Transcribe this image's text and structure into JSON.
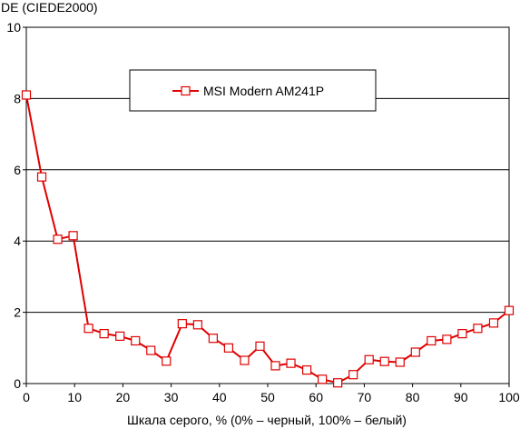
{
  "chart_data": {
    "type": "line",
    "title": "",
    "ylabel": "DE (CIEDE2000)",
    "xlabel": "Шкала серого, % (0% – черный, 100% – белый)",
    "xlim": [
      0,
      100
    ],
    "ylim": [
      0,
      10
    ],
    "xticks": [
      "0",
      "10",
      "20",
      "30",
      "40",
      "50",
      "60",
      "70",
      "80",
      "90",
      "100"
    ],
    "yticks": [
      "0",
      "2",
      "4",
      "6",
      "8",
      "10"
    ],
    "grid": "horizontal",
    "legend_position": "top-center",
    "series": [
      {
        "name": "MSI Modern AM241P",
        "color": "#e00000",
        "marker": "square",
        "x": [
          0,
          3.2,
          6.5,
          9.7,
          12.9,
          16.1,
          19.4,
          22.6,
          25.8,
          29.0,
          32.3,
          35.5,
          38.7,
          41.9,
          45.2,
          48.4,
          51.6,
          54.8,
          58.1,
          61.3,
          64.5,
          67.7,
          71.0,
          74.2,
          77.4,
          80.6,
          83.9,
          87.1,
          90.3,
          93.5,
          96.8,
          100
        ],
        "values": [
          8.1,
          5.8,
          4.05,
          4.15,
          1.55,
          1.4,
          1.33,
          1.2,
          0.93,
          0.63,
          1.68,
          1.65,
          1.27,
          1.0,
          0.65,
          1.05,
          0.5,
          0.57,
          0.38,
          0.12,
          0.02,
          0.25,
          0.67,
          0.62,
          0.6,
          0.88,
          1.2,
          1.24,
          1.4,
          1.55,
          1.7,
          2.05
        ]
      }
    ]
  }
}
